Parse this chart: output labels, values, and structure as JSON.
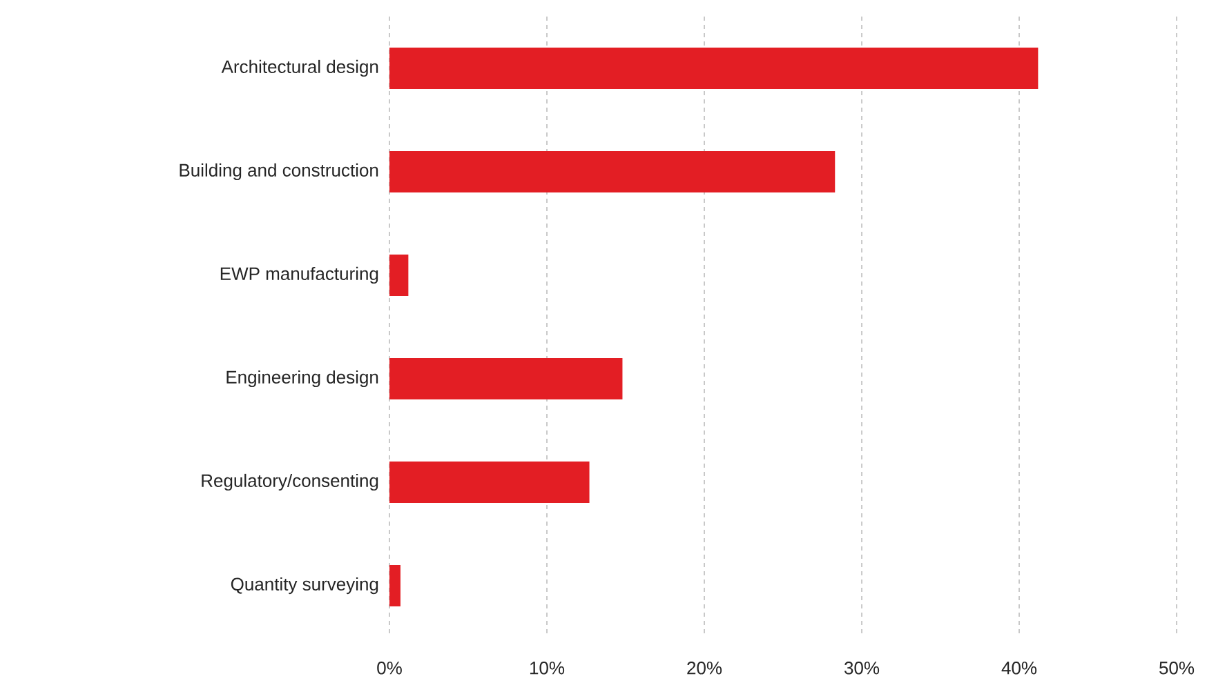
{
  "chart_data": {
    "type": "bar",
    "orientation": "horizontal",
    "categories": [
      "Architectural design",
      "Building and construction",
      "EWP manufacturing",
      "Engineering design",
      "Regulatory/consenting",
      "Quantity surveying"
    ],
    "values": [
      41.2,
      28.3,
      1.2,
      14.8,
      12.7,
      0.7
    ],
    "color": "#e31e24",
    "xlim": [
      0,
      50
    ],
    "xticks": [
      {
        "value": 0,
        "label": "0%"
      },
      {
        "value": 10,
        "label": "10%"
      },
      {
        "value": 20,
        "label": "20%"
      },
      {
        "value": 30,
        "label": "30%"
      },
      {
        "value": 40,
        "label": "40%"
      },
      {
        "value": 50,
        "label": "50%"
      }
    ],
    "grid": "x"
  }
}
